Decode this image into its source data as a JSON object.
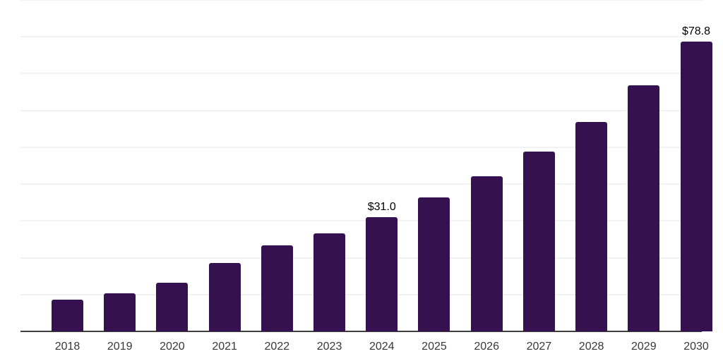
{
  "chart_data": {
    "type": "bar",
    "title": "",
    "xlabel": "",
    "ylabel": "",
    "categories": [
      "2018",
      "2019",
      "2020",
      "2021",
      "2022",
      "2023",
      "2024",
      "2025",
      "2026",
      "2027",
      "2028",
      "2029",
      "2030"
    ],
    "values": [
      8.6,
      10.3,
      13.2,
      18.6,
      23.4,
      26.6,
      31.0,
      36.3,
      42.1,
      48.8,
      56.9,
      66.8,
      78.8
    ],
    "point_labels": [
      "",
      "",
      "",
      "",
      "",
      "",
      "$31.0",
      "",
      "",
      "",
      "",
      "",
      "$78.8"
    ],
    "ylim": [
      0,
      90
    ],
    "gridline_step": 10,
    "grid": true,
    "legend": false,
    "y_tick_labels_visible": false,
    "colors": {
      "bar": "#35124F",
      "axis": "#3F3F3F",
      "gridline": "#F2F2F2",
      "tick_label": "#383838",
      "value_label": "#000000",
      "background": "#FFFFFF"
    }
  }
}
